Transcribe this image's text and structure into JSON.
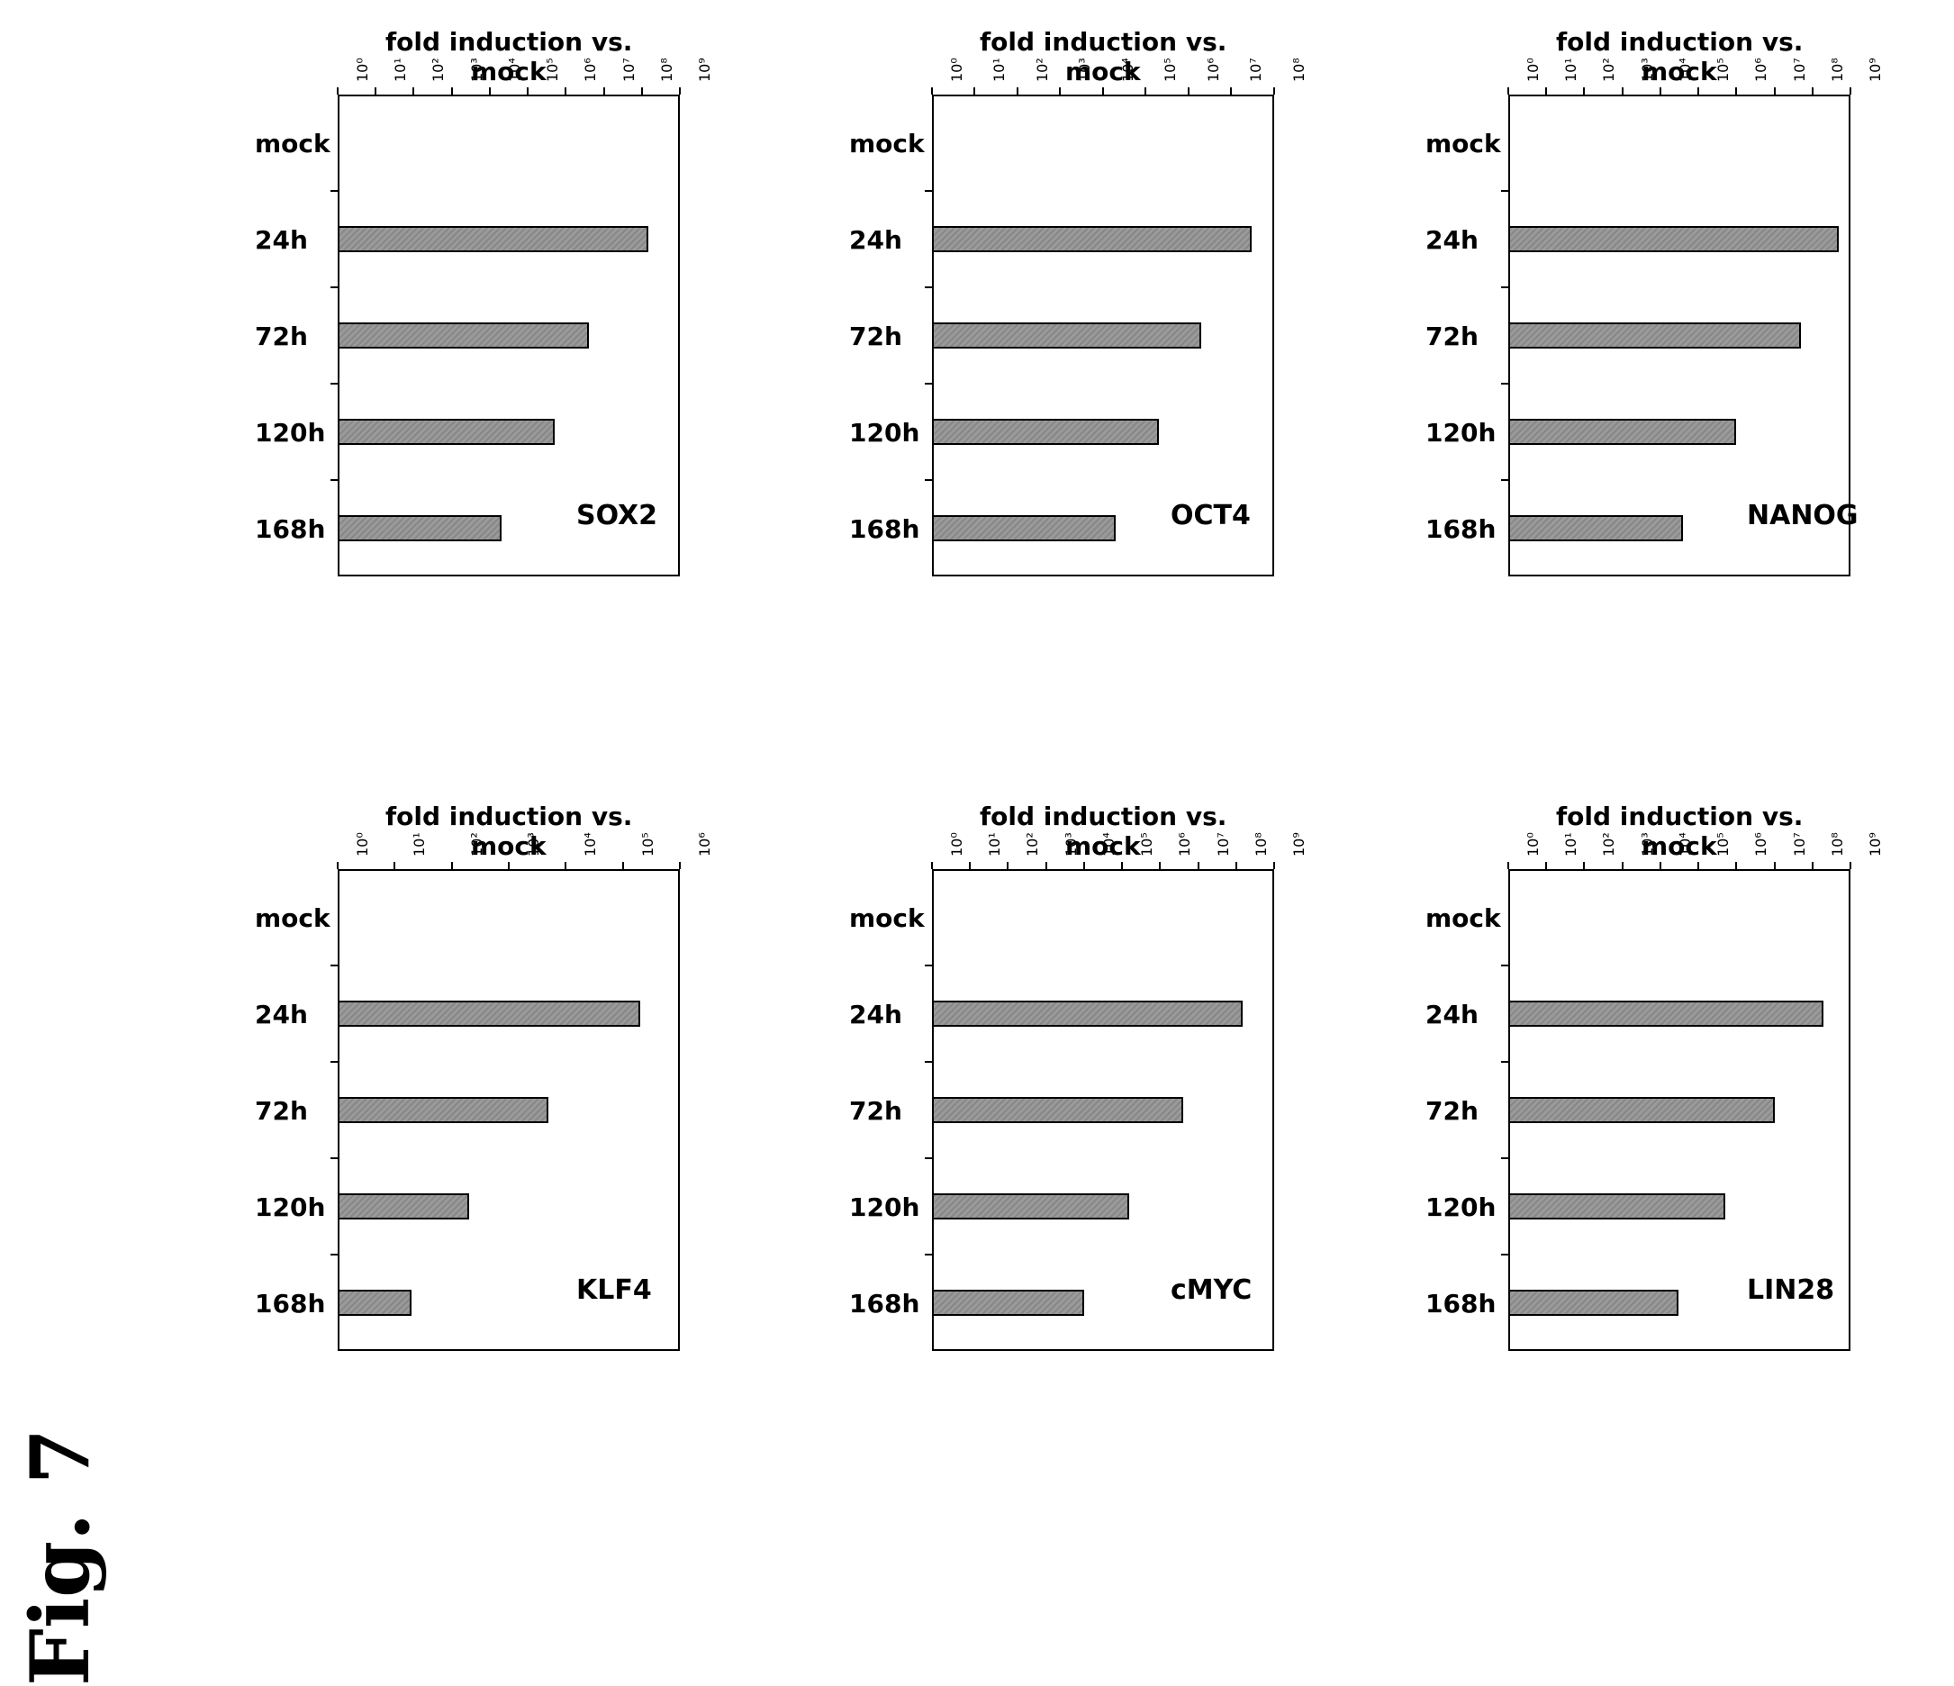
{
  "figure": {
    "title": "Fig. 7"
  },
  "chart_data": [
    {
      "type": "bar",
      "gene": "KLF4",
      "categories": [
        "mock",
        "24h",
        "72h",
        "120h",
        "168h"
      ],
      "values": [
        1,
        200000,
        5000,
        200,
        20
      ],
      "ylabel": "fold induction vs. mock",
      "yscale": "log",
      "ylim": [
        1,
        1000000
      ],
      "yticks": [
        "10^0",
        "10^1",
        "10^2",
        "10^3",
        "10^4",
        "10^5",
        "10^6"
      ]
    },
    {
      "type": "bar",
      "gene": "SOX2",
      "categories": [
        "mock",
        "24h",
        "72h",
        "120h",
        "168h"
      ],
      "values": [
        1,
        150000000,
        4000000,
        500000,
        20000
      ],
      "ylabel": "fold induction vs. mock",
      "yscale": "log",
      "ylim": [
        1,
        1000000000
      ],
      "yticks": [
        "10^0",
        "10^1",
        "10^2",
        "10^3",
        "10^4",
        "10^5",
        "10^6",
        "10^7",
        "10^8",
        "10^9"
      ]
    },
    {
      "type": "bar",
      "gene": "cMYC",
      "categories": [
        "mock",
        "24h",
        "72h",
        "120h",
        "168h"
      ],
      "values": [
        1,
        150000000,
        4000000,
        150000,
        10000
      ],
      "ylabel": "fold induction vs. mock",
      "yscale": "log",
      "ylim": [
        1,
        1000000000
      ],
      "yticks": [
        "10^0",
        "10^1",
        "10^2",
        "10^3",
        "10^4",
        "10^5",
        "10^6",
        "10^7",
        "10^8",
        "10^9"
      ]
    },
    {
      "type": "bar",
      "gene": "OCT4",
      "categories": [
        "mock",
        "24h",
        "72h",
        "120h",
        "168h"
      ],
      "values": [
        1,
        30000000,
        2000000,
        200000,
        20000
      ],
      "ylabel": "fold induction vs. mock",
      "yscale": "log",
      "ylim": [
        1,
        100000000
      ],
      "yticks": [
        "10^0",
        "10^1",
        "10^2",
        "10^3",
        "10^4",
        "10^5",
        "10^6",
        "10^7",
        "10^8"
      ]
    },
    {
      "type": "bar",
      "gene": "LIN28",
      "categories": [
        "mock",
        "24h",
        "72h",
        "120h",
        "168h"
      ],
      "values": [
        1,
        200000000,
        10000000,
        500000,
        30000
      ],
      "ylabel": "fold induction vs. mock",
      "yscale": "log",
      "ylim": [
        1,
        1000000000
      ],
      "yticks": [
        "10^0",
        "10^1",
        "10^2",
        "10^3",
        "10^4",
        "10^5",
        "10^6",
        "10^7",
        "10^8",
        "10^9"
      ]
    },
    {
      "type": "bar",
      "gene": "NANOG",
      "categories": [
        "mock",
        "24h",
        "72h",
        "120h",
        "168h"
      ],
      "values": [
        1,
        500000000,
        50000000,
        1000000,
        40000
      ],
      "ylabel": "fold induction vs. mock",
      "yscale": "log",
      "ylim": [
        1,
        1000000000
      ],
      "yticks": [
        "10^0",
        "10^1",
        "10^2",
        "10^3",
        "10^4",
        "10^5",
        "10^6",
        "10^7",
        "10^8",
        "10^9"
      ]
    }
  ]
}
